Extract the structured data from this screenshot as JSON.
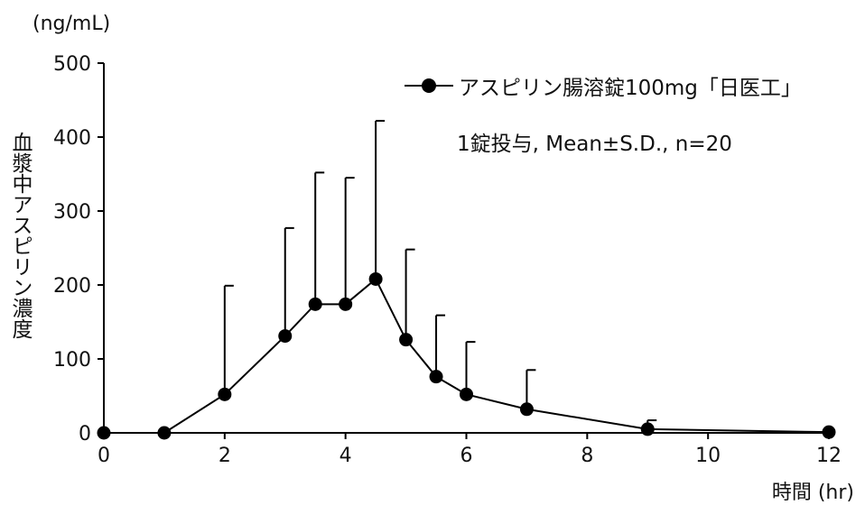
{
  "chart_data": {
    "type": "line",
    "title": "",
    "ylabel": "血漿中アスピリン濃度",
    "yunit": "(ng/mL)",
    "xlabel": "時間 (hr)",
    "xlim": [
      0,
      12
    ],
    "ylim": [
      0,
      500
    ],
    "xticks": [
      0,
      2,
      4,
      6,
      8,
      10,
      12
    ],
    "yticks": [
      0,
      100,
      200,
      300,
      400,
      500
    ],
    "grid": false,
    "legend_position": "top-right",
    "annotation": "1錠投与, Mean±S.D., n=20",
    "series": [
      {
        "name": "アスピリン腸溶錠100mg「日医工」",
        "color": "#000000",
        "marker": "circle",
        "x": [
          0,
          1,
          2,
          3,
          3.5,
          4,
          4.5,
          5,
          5.5,
          6,
          7,
          9,
          12
        ],
        "y": [
          0,
          0,
          52,
          131,
          174,
          174,
          208,
          126,
          76,
          52,
          32,
          5,
          1
        ],
        "sd": [
          0,
          0,
          147,
          146,
          178,
          171,
          214,
          122,
          83,
          71,
          53,
          12,
          0
        ]
      }
    ]
  }
}
